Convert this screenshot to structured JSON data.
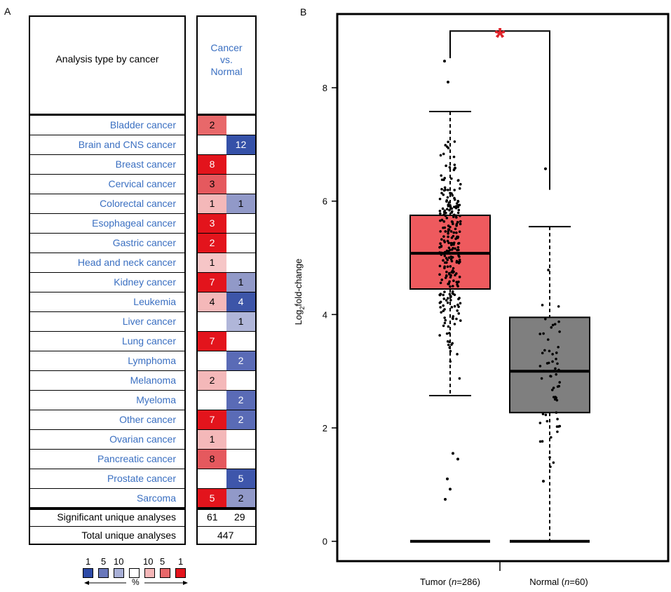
{
  "panelA": {
    "letter": "A",
    "header_left": "Analysis type by cancer",
    "header_right": "Cancer\nvs.\nNormal",
    "rows": [
      {
        "name": "Bladder cancer",
        "over": "2",
        "under": ""
      },
      {
        "name": "Brain and CNS cancer",
        "over": "",
        "under": "12"
      },
      {
        "name": "Breast cancer",
        "over": "8",
        "under": ""
      },
      {
        "name": "Cervical cancer",
        "over": "3",
        "under": ""
      },
      {
        "name": "Colorectal cancer",
        "over": "1",
        "under": "1"
      },
      {
        "name": "Esophageal cancer",
        "over": "3",
        "under": ""
      },
      {
        "name": "Gastric cancer",
        "over": "2",
        "under": ""
      },
      {
        "name": "Head and neck cancer",
        "over": "1",
        "under": ""
      },
      {
        "name": "Kidney cancer",
        "over": "7",
        "under": "1"
      },
      {
        "name": "Leukemia",
        "over": "4",
        "under": "4"
      },
      {
        "name": "Liver cancer",
        "over": "",
        "under": "1"
      },
      {
        "name": "Lung cancer",
        "over": "7",
        "under": ""
      },
      {
        "name": "Lymphoma",
        "over": "",
        "under": "2"
      },
      {
        "name": "Melanoma",
        "over": "2",
        "under": ""
      },
      {
        "name": "Myeloma",
        "over": "",
        "under": "2"
      },
      {
        "name": "Other cancer",
        "over": "7",
        "under": "2"
      },
      {
        "name": "Ovarian cancer",
        "over": "1",
        "under": ""
      },
      {
        "name": "Pancreatic cancer",
        "over": "8",
        "under": ""
      },
      {
        "name": "Prostate cancer",
        "over": "",
        "under": "5"
      },
      {
        "name": "Sarcoma",
        "over": "5",
        "under": "2"
      }
    ],
    "cell_colors": {
      "over": [
        "#e8686a",
        "",
        "#e3141c",
        "#e5595e",
        "#f4b8b9",
        "#e3141c",
        "#e3141c",
        "#f6c6c7",
        "#e3141c",
        "#f4b8b9",
        "",
        "#e3141c",
        "",
        "#f4b8b9",
        "",
        "#e3141c",
        "#f4b8b9",
        "#e5595e",
        "",
        "#e3141c"
      ],
      "under": [
        "",
        "#3551a8",
        "",
        "",
        "#9199c8",
        "",
        "",
        "",
        "#9199c8",
        "#3d55a8",
        "#b0b6d9",
        "",
        "#5a6bb6",
        "",
        "#5a6bb6",
        "#5a6bb6",
        "",
        "",
        "#3e56ab",
        "#9199c8"
      ]
    },
    "summary": {
      "significant_label": "Significant unique analyses",
      "significant_over": "61",
      "significant_under": "29",
      "total_label": "Total unique analyses",
      "total_value": "447"
    },
    "legend": {
      "numbers": [
        "1",
        "5",
        "10",
        "10",
        "5",
        "1"
      ],
      "colors": [
        "#2d4aa6",
        "#6a78bb",
        "#a8afd6",
        "#ffffff",
        "#f4b6b7",
        "#e8686a",
        "#e3141c"
      ],
      "unit": "%"
    }
  },
  "chart_data": {
    "letter": "B",
    "type": "box",
    "ylabel": "Log2fold-change",
    "ylabel_main": "Log",
    "ylabel_sub": "2",
    "ylabel_rest": "fold-change",
    "ylim": [
      -0.35,
      9.3
    ],
    "yticks": [
      "0",
      "2",
      "4",
      "6",
      "8"
    ],
    "significance_marker": "*",
    "categories": [
      "Tumor (n=286)",
      "Normal (n=60)"
    ],
    "category_parts": [
      {
        "pre": "Tumor (",
        "italic": "n",
        "post": "=286)"
      },
      {
        "pre": "Normal (",
        "italic": "n",
        "post": "=60)"
      }
    ],
    "series": [
      {
        "category": "Tumor (n=286)",
        "whisker_low": 2.57,
        "q1": 4.45,
        "median": 5.08,
        "q3": 5.75,
        "whisker_high": 7.58,
        "color": "#ee5a5e",
        "points_min": 0.74,
        "points_max": 8.47,
        "zero_cluster": true
      },
      {
        "category": "Normal (n=60)",
        "whisker_low": 0.0,
        "q1": 2.27,
        "median": 3.0,
        "q3": 3.95,
        "whisker_high": 5.55,
        "color": "#7f7f7f",
        "points_min": 1.06,
        "points_max": 6.57,
        "zero_cluster": true
      }
    ]
  }
}
